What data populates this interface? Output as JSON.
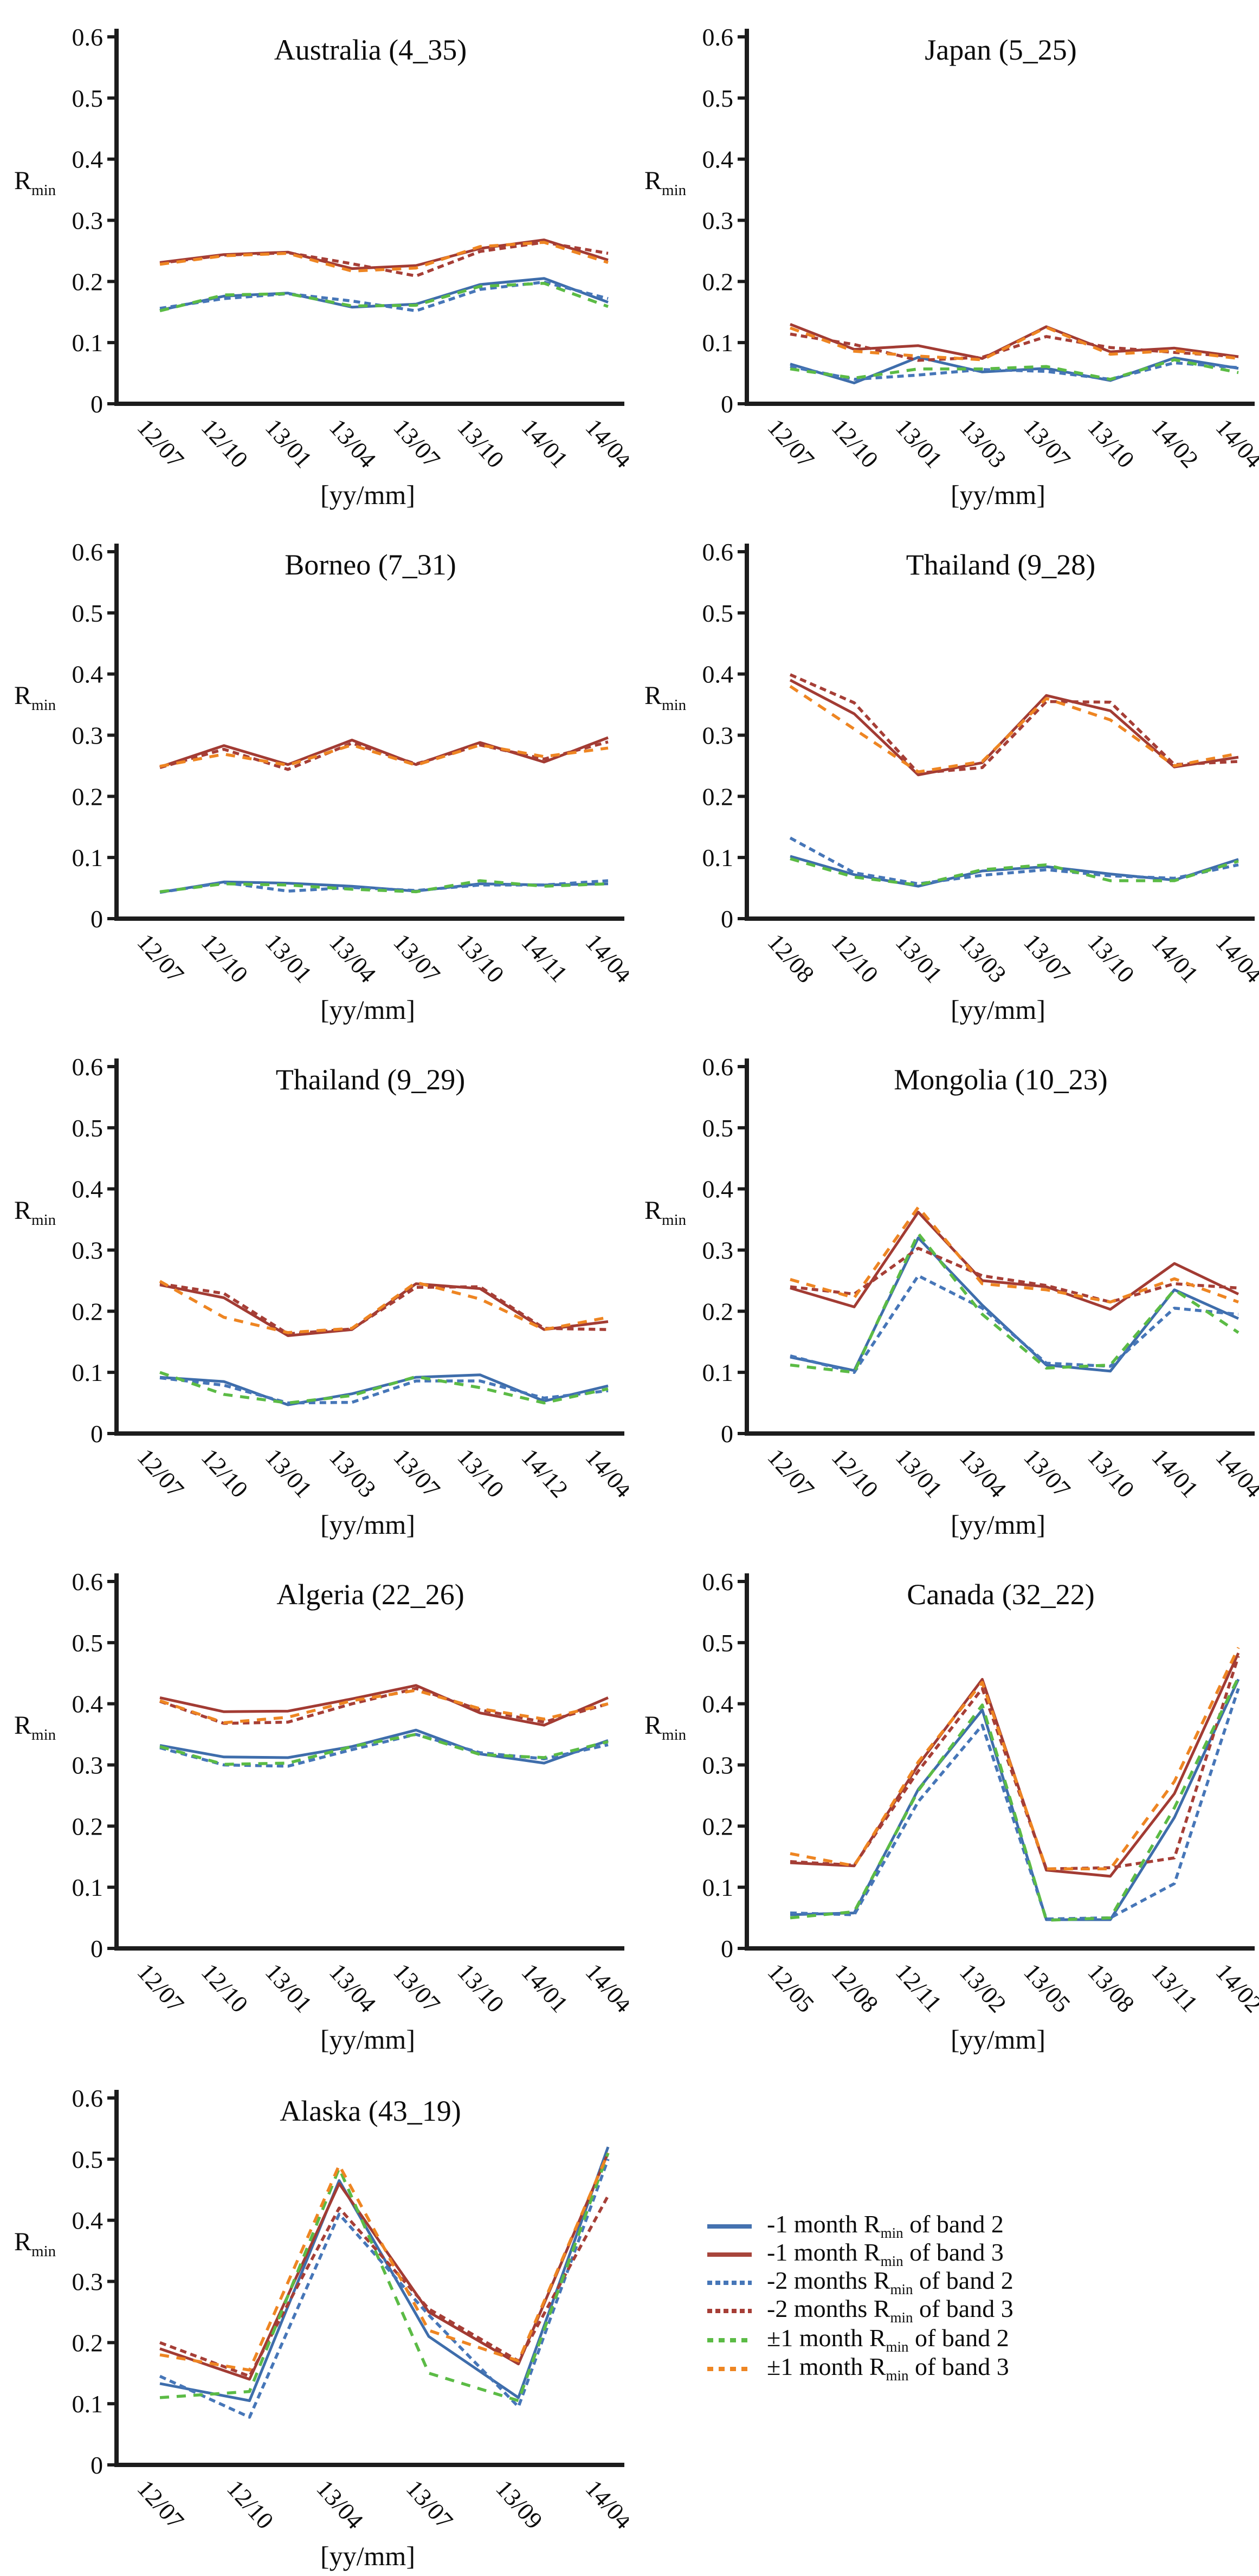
{
  "axis": {
    "y_ticks": [
      "0",
      "0.1",
      "0.2",
      "0.3",
      "0.4",
      "0.5",
      "0.6"
    ],
    "y_min": 0,
    "y_max": 0.6,
    "y_label_main": "R",
    "y_label_sub": "min",
    "x_axis_label": "[yy/mm]"
  },
  "series_meta": [
    {
      "key": "m1b2",
      "name": "minus-1-month-band2-solid-blue",
      "color": "#3E6DAB",
      "dash": "",
      "width": 5
    },
    {
      "key": "m1b3",
      "name": "minus-1-month-band3-solid-red",
      "color": "#A23B33",
      "dash": "",
      "width": 5
    },
    {
      "key": "m2b2",
      "name": "minus-2-months-band2-dashed-blue",
      "color": "#4676B8",
      "dash": "12 8",
      "width": 5.5
    },
    {
      "key": "m2b3",
      "name": "minus-2-months-band3-dashed-red",
      "color": "#A63E36",
      "dash": "12 8",
      "width": 5.5
    },
    {
      "key": "pm1b2",
      "name": "pm-1-month-band2-dashed-green",
      "color": "#5BBB45",
      "dash": "17 14",
      "width": 5.5
    },
    {
      "key": "pm1b3",
      "name": "pm-1-month-band3-dashed-orange",
      "color": "#EE8522",
      "dash": "17 14",
      "width": 5.5
    }
  ],
  "legend": {
    "rmin_main": "R",
    "rmin_sub": "min",
    "items": [
      {
        "prefix": "-1 month",
        "suffix": "of band 2",
        "style": "solid",
        "color": "#4472B0"
      },
      {
        "prefix": "-1 month",
        "suffix": "of band 3",
        "style": "solid",
        "color": "#A8453C"
      },
      {
        "prefix": "-2 months",
        "suffix": "of band 2",
        "style": "dash-short",
        "color": "#4676B8"
      },
      {
        "prefix": "-2 months",
        "suffix": "of band 3",
        "style": "dash-short",
        "color": "#A63E36"
      },
      {
        "prefix": "±1 month",
        "suffix": "of band 2",
        "style": "dash-long",
        "color": "#5BBB45"
      },
      {
        "prefix": "±1 month",
        "suffix": "of band 3",
        "style": "dash-long",
        "color": "#EE8522"
      }
    ]
  },
  "chart_data": [
    {
      "type": "line",
      "title": "Australia (4_35)",
      "xlabel": "[yy/mm]",
      "ylabel": "Rmin",
      "ylim": [
        0,
        0.6
      ],
      "x_labels": [
        "12/07",
        "12/10",
        "13/01",
        "13/04",
        "13/07",
        "13/10",
        "14/01",
        "14/04"
      ],
      "series": {
        "m1b2": [
          0.153,
          0.176,
          0.181,
          0.158,
          0.163,
          0.195,
          0.205,
          0.166
        ],
        "m1b3": [
          0.231,
          0.244,
          0.248,
          0.221,
          0.226,
          0.254,
          0.268,
          0.235
        ],
        "m2b2": [
          0.156,
          0.172,
          0.18,
          0.168,
          0.152,
          0.187,
          0.199,
          0.172
        ],
        "m2b3": [
          0.23,
          0.243,
          0.247,
          0.229,
          0.209,
          0.249,
          0.264,
          0.246
        ],
        "pm1b2": [
          0.152,
          0.178,
          0.18,
          0.16,
          0.161,
          0.192,
          0.197,
          0.159
        ],
        "pm1b3": [
          0.228,
          0.242,
          0.246,
          0.217,
          0.222,
          0.257,
          0.264,
          0.231
        ]
      }
    },
    {
      "type": "line",
      "title": "Japan (5_25)",
      "xlabel": "[yy/mm]",
      "ylabel": "Rmin",
      "ylim": [
        0,
        0.6
      ],
      "x_labels": [
        "12/07",
        "12/10",
        "13/01",
        "13/03",
        "13/07",
        "13/10",
        "14/02",
        "14/04"
      ],
      "series": {
        "m1b2": [
          0.065,
          0.034,
          0.076,
          0.052,
          0.058,
          0.038,
          0.075,
          0.058
        ],
        "m1b3": [
          0.13,
          0.089,
          0.095,
          0.074,
          0.126,
          0.085,
          0.091,
          0.077
        ],
        "m2b2": [
          0.061,
          0.04,
          0.047,
          0.056,
          0.053,
          0.04,
          0.067,
          0.059
        ],
        "m2b3": [
          0.114,
          0.097,
          0.071,
          0.076,
          0.11,
          0.092,
          0.084,
          0.077
        ],
        "pm1b2": [
          0.057,
          0.042,
          0.057,
          0.057,
          0.061,
          0.04,
          0.072,
          0.051
        ],
        "pm1b3": [
          0.124,
          0.086,
          0.078,
          0.072,
          0.125,
          0.081,
          0.087,
          0.074
        ]
      }
    },
    {
      "type": "line",
      "title": "Borneo (7_31)",
      "xlabel": "[yy/mm]",
      "ylabel": "Rmin",
      "ylim": [
        0,
        0.6
      ],
      "x_labels": [
        "12/07",
        "12/10",
        "13/01",
        "13/04",
        "13/07",
        "13/10",
        "14/11",
        "14/04"
      ],
      "series": {
        "m1b2": [
          0.043,
          0.06,
          0.058,
          0.053,
          0.045,
          0.057,
          0.055,
          0.057
        ],
        "m1b3": [
          0.248,
          0.283,
          0.252,
          0.292,
          0.252,
          0.288,
          0.256,
          0.296
        ],
        "m2b2": [
          0.043,
          0.059,
          0.045,
          0.051,
          0.046,
          0.055,
          0.055,
          0.062
        ],
        "m2b3": [
          0.247,
          0.277,
          0.244,
          0.287,
          0.253,
          0.284,
          0.261,
          0.289
        ],
        "pm1b2": [
          0.044,
          0.057,
          0.055,
          0.048,
          0.044,
          0.062,
          0.053,
          0.057
        ],
        "pm1b3": [
          0.249,
          0.269,
          0.251,
          0.284,
          0.251,
          0.284,
          0.265,
          0.279
        ]
      }
    },
    {
      "type": "line",
      "title": "Thailand (9_28)",
      "xlabel": "[yy/mm]",
      "ylabel": "Rmin",
      "ylim": [
        0,
        0.6
      ],
      "x_labels": [
        "12/08",
        "12/10",
        "13/01",
        "13/03",
        "13/07",
        "13/10",
        "14/01",
        "14/04"
      ],
      "series": {
        "m1b2": [
          0.102,
          0.072,
          0.053,
          0.078,
          0.085,
          0.073,
          0.063,
          0.097
        ],
        "m1b3": [
          0.39,
          0.335,
          0.235,
          0.255,
          0.365,
          0.34,
          0.248,
          0.264
        ],
        "m2b2": [
          0.132,
          0.075,
          0.057,
          0.071,
          0.08,
          0.07,
          0.066,
          0.088
        ],
        "m2b3": [
          0.399,
          0.353,
          0.238,
          0.247,
          0.355,
          0.354,
          0.252,
          0.257
        ],
        "pm1b2": [
          0.098,
          0.068,
          0.055,
          0.08,
          0.088,
          0.062,
          0.062,
          0.094
        ],
        "pm1b3": [
          0.38,
          0.31,
          0.24,
          0.257,
          0.36,
          0.325,
          0.25,
          0.27
        ]
      }
    },
    {
      "type": "line",
      "title": "Thailand (9_29)",
      "xlabel": "[yy/mm]",
      "ylabel": "Rmin",
      "ylim": [
        0,
        0.6
      ],
      "x_labels": [
        "12/07",
        "12/10",
        "13/01",
        "13/03",
        "13/07",
        "13/10",
        "14/12",
        "14/04"
      ],
      "series": {
        "m1b2": [
          0.092,
          0.085,
          0.047,
          0.065,
          0.092,
          0.096,
          0.053,
          0.078
        ],
        "m1b3": [
          0.243,
          0.222,
          0.16,
          0.17,
          0.245,
          0.237,
          0.17,
          0.183
        ],
        "m2b2": [
          0.091,
          0.079,
          0.05,
          0.051,
          0.086,
          0.086,
          0.058,
          0.07
        ],
        "m2b3": [
          0.245,
          0.229,
          0.163,
          0.171,
          0.239,
          0.24,
          0.172,
          0.17
        ],
        "pm1b2": [
          0.1,
          0.064,
          0.05,
          0.062,
          0.093,
          0.075,
          0.05,
          0.073
        ],
        "pm1b3": [
          0.249,
          0.19,
          0.165,
          0.172,
          0.247,
          0.22,
          0.17,
          0.19
        ]
      }
    },
    {
      "type": "line",
      "title": "Mongolia (10_23)",
      "xlabel": "[yy/mm]",
      "ylabel": "Rmin",
      "ylim": [
        0,
        0.6
      ],
      "x_labels": [
        "12/07",
        "12/10",
        "13/01",
        "13/04",
        "13/07",
        "13/10",
        "14/01",
        "14/04"
      ],
      "series": {
        "m1b2": [
          0.125,
          0.103,
          0.32,
          0.21,
          0.112,
          0.102,
          0.235,
          0.188
        ],
        "m1b3": [
          0.238,
          0.207,
          0.362,
          0.25,
          0.24,
          0.203,
          0.278,
          0.228
        ],
        "m2b2": [
          0.127,
          0.1,
          0.258,
          0.205,
          0.115,
          0.11,
          0.205,
          0.195
        ],
        "m2b3": [
          0.24,
          0.228,
          0.303,
          0.258,
          0.242,
          0.215,
          0.245,
          0.238
        ],
        "pm1b2": [
          0.112,
          0.1,
          0.327,
          0.195,
          0.107,
          0.112,
          0.235,
          0.165
        ],
        "pm1b3": [
          0.252,
          0.222,
          0.37,
          0.245,
          0.235,
          0.215,
          0.253,
          0.215
        ]
      }
    },
    {
      "type": "line",
      "title": "Algeria (22_26)",
      "xlabel": "[yy/mm]",
      "ylabel": "Rmin",
      "ylim": [
        0,
        0.6
      ],
      "x_labels": [
        "12/07",
        "12/10",
        "13/01",
        "13/04",
        "13/07",
        "13/10",
        "14/01",
        "14/04"
      ],
      "series": {
        "m1b2": [
          0.332,
          0.313,
          0.312,
          0.33,
          0.357,
          0.318,
          0.303,
          0.34
        ],
        "m1b3": [
          0.41,
          0.387,
          0.388,
          0.408,
          0.43,
          0.385,
          0.365,
          0.41
        ],
        "m2b2": [
          0.328,
          0.3,
          0.298,
          0.325,
          0.35,
          0.32,
          0.31,
          0.333
        ],
        "m2b3": [
          0.404,
          0.368,
          0.37,
          0.4,
          0.425,
          0.39,
          0.37,
          0.4
        ],
        "pm1b2": [
          0.33,
          0.301,
          0.303,
          0.33,
          0.35,
          0.317,
          0.312,
          0.338
        ],
        "pm1b3": [
          0.405,
          0.369,
          0.378,
          0.405,
          0.422,
          0.392,
          0.375,
          0.4
        ]
      }
    },
    {
      "type": "line",
      "title": "Canada (32_22)",
      "xlabel": "[yy/mm]",
      "ylabel": "Rmin",
      "ylim": [
        0,
        0.6
      ],
      "x_labels": [
        "12/05",
        "12/08",
        "12/11",
        "13/02",
        "13/05",
        "13/08",
        "13/11",
        "14/02"
      ],
      "series": {
        "m1b2": [
          0.055,
          0.058,
          0.26,
          0.39,
          0.047,
          0.047,
          0.214,
          0.44
        ],
        "m1b3": [
          0.14,
          0.135,
          0.3,
          0.44,
          0.128,
          0.118,
          0.253,
          0.483
        ],
        "m2b2": [
          0.058,
          0.055,
          0.24,
          0.365,
          0.048,
          0.05,
          0.106,
          0.425
        ],
        "m2b3": [
          0.142,
          0.136,
          0.29,
          0.425,
          0.13,
          0.132,
          0.148,
          0.478
        ],
        "pm1b2": [
          0.05,
          0.06,
          0.258,
          0.398,
          0.046,
          0.05,
          0.23,
          0.443
        ],
        "pm1b3": [
          0.155,
          0.135,
          0.305,
          0.435,
          0.13,
          0.13,
          0.273,
          0.492
        ]
      }
    },
    {
      "type": "line",
      "title": "Alaska (43_19)",
      "xlabel": "[yy/mm]",
      "ylabel": "Rmin",
      "ylim": [
        0,
        0.6
      ],
      "x_labels": [
        "12/07",
        "12/10",
        "13/04",
        "13/07",
        "13/09",
        "14/04"
      ],
      "series": {
        "m1b2": [
          0.133,
          0.105,
          0.465,
          0.21,
          0.11,
          0.52
        ],
        "m1b3": [
          0.19,
          0.14,
          0.46,
          0.25,
          0.165,
          0.51
        ],
        "m2b2": [
          0.145,
          0.078,
          0.41,
          0.245,
          0.095,
          0.5
        ],
        "m2b3": [
          0.2,
          0.145,
          0.42,
          0.255,
          0.17,
          0.44
        ],
        "pm1b2": [
          0.11,
          0.12,
          0.485,
          0.15,
          0.105,
          0.51
        ],
        "pm1b3": [
          0.18,
          0.155,
          0.49,
          0.22,
          0.17,
          0.51
        ]
      }
    }
  ]
}
